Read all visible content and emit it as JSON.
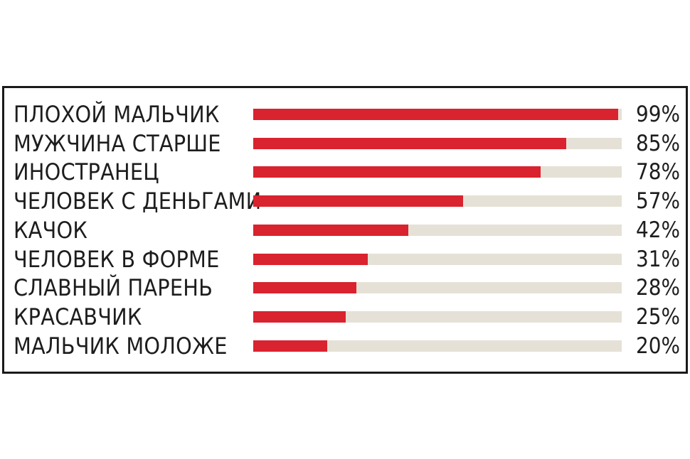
{
  "chart_data": {
    "type": "bar",
    "orientation": "horizontal",
    "categories": [
      "ПЛОХОЙ МАЛЬЧИК",
      "МУЖЧИНА СТАРШЕ",
      "ИНОСТРАНЕЦ",
      "ЧЕЛОВЕК С ДЕНЬГАМИ",
      "КАЧОК",
      "ЧЕЛОВЕК В ФОРМЕ",
      "СЛАВНЫЙ ПАРЕНЬ",
      "КРАСАВЧИК",
      "МАЛЬЧИК МОЛОЖЕ"
    ],
    "values": [
      99,
      85,
      78,
      57,
      42,
      31,
      28,
      25,
      20
    ],
    "value_labels": [
      "99%",
      "85%",
      "78%",
      "57%",
      "42%",
      "31%",
      "28%",
      "25%",
      "20%"
    ],
    "xlim": [
      0,
      100
    ],
    "grid": false,
    "bar_color": "#d9232e",
    "track_color": "#e6e1d6"
  }
}
